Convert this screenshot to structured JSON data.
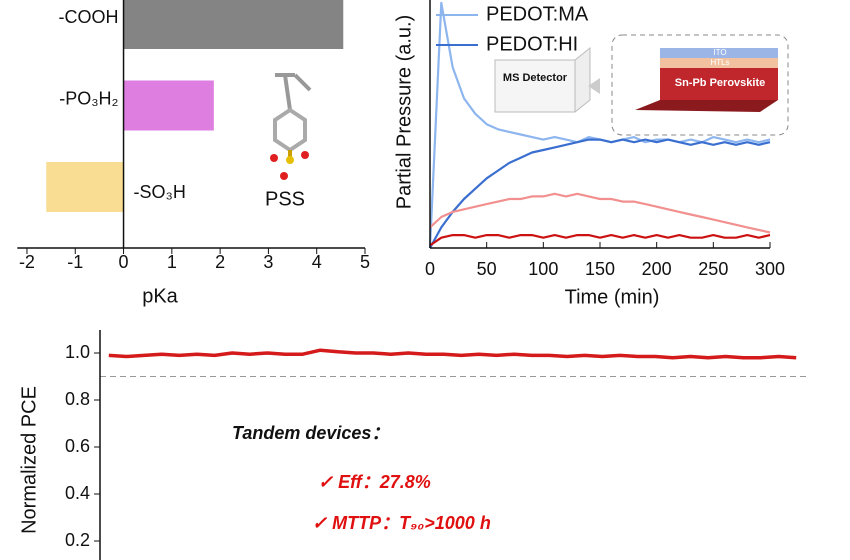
{
  "chart_data": [
    {
      "type": "bar",
      "orientation": "horizontal",
      "categories": [
        "-COOH",
        "-PO₃H₂",
        "-SO₃H"
      ],
      "values": [
        4.55,
        1.87,
        -1.6
      ],
      "colors": [
        "#848484",
        "#de7ee0",
        "#f9dd92"
      ],
      "xlim": [
        -2.2,
        5
      ],
      "xticks": [
        -2,
        -1,
        0,
        1,
        2,
        3,
        4,
        5
      ],
      "xlabel": "pKa",
      "annotation": "PSS"
    },
    {
      "type": "line",
      "x": [
        0,
        10,
        20,
        30,
        40,
        50,
        60,
        70,
        80,
        90,
        100,
        110,
        120,
        130,
        140,
        150,
        160,
        170,
        180,
        190,
        200,
        210,
        220,
        230,
        240,
        250,
        260,
        270,
        280,
        290,
        300
      ],
      "series": [
        {
          "name": "PEDOT:MA",
          "color": "#8db5ee",
          "values": [
            0,
            95,
            70,
            58,
            52,
            48,
            46,
            45,
            44,
            43,
            42,
            43,
            42,
            41,
            43,
            42,
            41,
            42,
            43,
            41,
            42,
            42,
            41,
            42,
            41,
            43,
            42,
            41,
            42,
            41,
            42
          ]
        },
        {
          "name": "PEDOT:HI",
          "color": "#3a6fd0",
          "values": [
            0,
            8,
            14,
            19,
            23,
            27,
            30,
            33,
            35,
            37,
            38,
            39,
            40,
            41,
            42,
            42,
            41,
            42,
            41,
            42,
            41,
            42,
            41,
            40,
            41,
            40,
            41,
            40,
            41,
            40,
            41
          ]
        },
        {
          "color": "#f29090",
          "values": [
            8,
            12,
            14,
            15,
            16,
            17,
            18,
            19,
            19,
            20,
            20,
            21,
            20,
            21,
            20,
            19,
            19,
            18,
            18,
            17,
            16,
            15,
            14,
            13,
            12,
            11,
            10,
            9,
            8,
            7,
            6
          ]
        },
        {
          "color": "#cc1111",
          "values": [
            1,
            4,
            5,
            5,
            4,
            5,
            5,
            4,
            5,
            5,
            4,
            5,
            4,
            5,
            5,
            4,
            5,
            4,
            5,
            4,
            5,
            4,
            5,
            4,
            4,
            5,
            4,
            4,
            5,
            4,
            5
          ]
        }
      ],
      "xlim": [
        0,
        300
      ],
      "xticks": [
        0,
        50,
        100,
        150,
        200,
        250,
        300
      ],
      "ylim": [
        0,
        100
      ],
      "xlabel": "Time (min)",
      "ylabel": "Partial Pressure (a.u.)",
      "annotations": [
        "MS Detector",
        "ITO",
        "HTLs",
        "Sn-Pb Perovskite"
      ]
    },
    {
      "type": "line",
      "series": [
        {
          "color": "#d41a1a",
          "values": [
            0.99,
            0.985,
            0.99,
            0.995,
            0.99,
            0.995,
            0.99,
            1.0,
            0.995,
            1.0,
            0.995,
            0.995,
            1.012,
            1.005,
            1.0,
            1.0,
            0.995,
            1.0,
            0.995,
            0.995,
            0.99,
            0.995,
            0.99,
            0.995,
            0.99,
            0.99,
            0.985,
            0.99,
            0.985,
            0.99,
            0.985,
            0.985,
            0.98,
            0.985,
            0.98,
            0.985,
            0.98,
            0.98,
            0.985,
            0.98
          ]
        }
      ],
      "ylim": [
        0.1,
        1.1
      ],
      "yticks": [
        {
          "value": 1,
          "label": "1.0"
        },
        0.8,
        0.6,
        0.4,
        0.2
      ],
      "reference_line": 0.9,
      "ylabel": "Normalized PCE",
      "annotations": [
        "Tandem devices：",
        "✓ Eff：27.8%",
        "✓ MTTP：T₉₀>1000 h"
      ]
    }
  ]
}
